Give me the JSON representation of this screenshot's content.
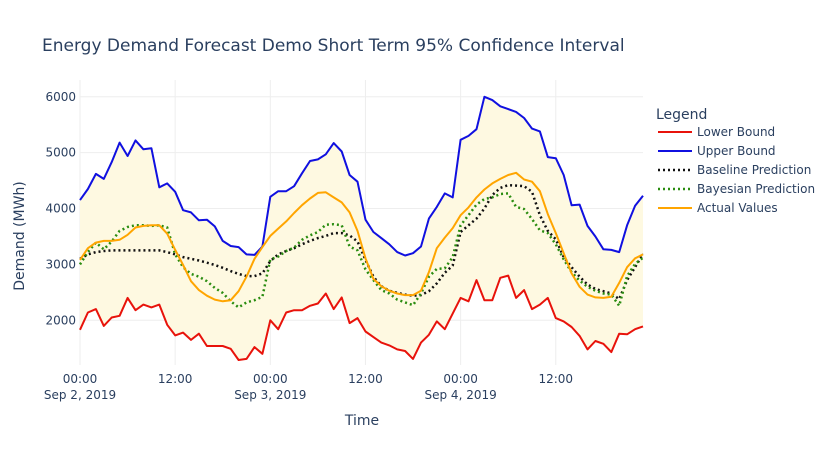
{
  "chart_data": {
    "type": "line",
    "title": "Energy Demand Forecast Demo Short Term 95% Confidence Interval",
    "xlabel": "Time",
    "ylabel": "Demand (MWh)",
    "ylim": [
      1200,
      6300
    ],
    "y_ticks": [
      2000,
      3000,
      4000,
      5000,
      6000
    ],
    "x_ticks": [
      {
        "hour": 0,
        "line1": "00:00",
        "line2": "Sep 2, 2019"
      },
      {
        "hour": 12,
        "line1": "12:00",
        "line2": ""
      },
      {
        "hour": 24,
        "line1": "00:00",
        "line2": "Sep 3, 2019"
      },
      {
        "hour": 36,
        "line1": "12:00",
        "line2": ""
      },
      {
        "hour": 48,
        "line1": "00:00",
        "line2": "Sep 4, 2019"
      },
      {
        "hour": 60,
        "line1": "12:00",
        "line2": ""
      }
    ],
    "x_hours": [
      0,
      1,
      2,
      3,
      4,
      5,
      6,
      7,
      8,
      9,
      10,
      11,
      12,
      13,
      14,
      15,
      16,
      17,
      18,
      19,
      20,
      21,
      22,
      23,
      24,
      25,
      26,
      27,
      28,
      29,
      30,
      31,
      32,
      33,
      34,
      35,
      36,
      37,
      38,
      39,
      40,
      41,
      42,
      43,
      44,
      45,
      46,
      47,
      48,
      49,
      50,
      51,
      52,
      53,
      54,
      55,
      56,
      57,
      58,
      59,
      60,
      61,
      62,
      63,
      64,
      65,
      66,
      67,
      68,
      69,
      70,
      71
    ],
    "legend": {
      "title": "Legend",
      "position": "right"
    },
    "band_fill": "#fef9e1",
    "grid": true,
    "series": [
      {
        "name": "Lower Bound",
        "color": "#e8130b",
        "dash": "solid",
        "values": [
          1830,
          2140,
          2200,
          1900,
          2050,
          2080,
          2400,
          2180,
          2280,
          2230,
          2280,
          1920,
          1730,
          1780,
          1650,
          1760,
          1540,
          1540,
          1540,
          1490,
          1290,
          1310,
          1520,
          1400,
          2000,
          1840,
          2140,
          2180,
          2180,
          2260,
          2300,
          2480,
          2200,
          2410,
          1950,
          2040,
          1800,
          1700,
          1600,
          1550,
          1480,
          1450,
          1310,
          1600,
          1740,
          1980,
          1840,
          2120,
          2400,
          2340,
          2720,
          2360,
          2360,
          2760,
          2800,
          2400,
          2540,
          2200,
          2280,
          2400,
          2040,
          1980,
          1880,
          1720,
          1480,
          1630,
          1580,
          1430,
          1760,
          1750,
          1840,
          1890
        ]
      },
      {
        "name": "Upper Bound",
        "color": "#1010e0",
        "dash": "solid",
        "values": [
          4150,
          4350,
          4620,
          4530,
          4830,
          5180,
          4940,
          5220,
          5060,
          5080,
          4380,
          4450,
          4300,
          3970,
          3930,
          3790,
          3800,
          3680,
          3420,
          3330,
          3310,
          3180,
          3170,
          3320,
          4210,
          4310,
          4310,
          4400,
          4630,
          4850,
          4880,
          4970,
          5170,
          5020,
          4600,
          4480,
          3800,
          3580,
          3470,
          3360,
          3220,
          3160,
          3200,
          3320,
          3820,
          4030,
          4270,
          4200,
          5230,
          5300,
          5420,
          6000,
          5940,
          5830,
          5780,
          5730,
          5620,
          5430,
          5380,
          4920,
          4900,
          4600,
          4060,
          4070,
          3690,
          3500,
          3270,
          3260,
          3220,
          3700,
          4050,
          4230
        ]
      },
      {
        "name": "Baseline Prediction",
        "color": "#111111",
        "dash": "dot",
        "values": [
          3100,
          3180,
          3220,
          3240,
          3250,
          3250,
          3250,
          3250,
          3250,
          3250,
          3250,
          3220,
          3180,
          3130,
          3100,
          3070,
          3030,
          2990,
          2940,
          2880,
          2830,
          2790,
          2790,
          2840,
          3060,
          3180,
          3240,
          3290,
          3360,
          3420,
          3470,
          3510,
          3560,
          3560,
          3520,
          3410,
          3080,
          2780,
          2610,
          2530,
          2490,
          2460,
          2440,
          2450,
          2520,
          2660,
          2850,
          2980,
          3580,
          3700,
          3820,
          4000,
          4240,
          4370,
          4420,
          4410,
          4400,
          4300,
          3880,
          3600,
          3450,
          3130,
          2950,
          2780,
          2640,
          2560,
          2520,
          2480,
          2380,
          2720,
          2950,
          3190
        ]
      },
      {
        "name": "Bayesian Prediction",
        "color": "#2a8c10",
        "dash": "dot",
        "values": [
          3000,
          3220,
          3390,
          3270,
          3410,
          3600,
          3670,
          3700,
          3700,
          3690,
          3700,
          3660,
          3180,
          2950,
          2830,
          2780,
          2700,
          2580,
          2490,
          2340,
          2230,
          2320,
          2360,
          2420,
          3090,
          3140,
          3240,
          3300,
          3440,
          3520,
          3580,
          3710,
          3720,
          3700,
          3320,
          3250,
          2910,
          2720,
          2540,
          2480,
          2370,
          2320,
          2270,
          2480,
          2780,
          2920,
          2930,
          3130,
          3700,
          3880,
          4070,
          4170,
          4200,
          4260,
          4270,
          4030,
          3990,
          3810,
          3610,
          3560,
          3360,
          3090,
          2860,
          2710,
          2600,
          2530,
          2480,
          2460,
          2260,
          2790,
          3010,
          3120
        ]
      },
      {
        "name": "Actual Values",
        "color": "#ffa500",
        "dash": "solid",
        "values": [
          3080,
          3290,
          3390,
          3420,
          3420,
          3440,
          3530,
          3660,
          3690,
          3700,
          3700,
          3550,
          3260,
          2990,
          2700,
          2540,
          2440,
          2370,
          2340,
          2360,
          2520,
          2780,
          3100,
          3310,
          3510,
          3640,
          3770,
          3920,
          4060,
          4180,
          4280,
          4290,
          4200,
          4110,
          3930,
          3600,
          3110,
          2740,
          2610,
          2530,
          2480,
          2450,
          2450,
          2530,
          2860,
          3290,
          3480,
          3650,
          3880,
          4020,
          4200,
          4340,
          4450,
          4530,
          4600,
          4640,
          4520,
          4480,
          4310,
          3900,
          3560,
          3200,
          2840,
          2600,
          2460,
          2410,
          2400,
          2420,
          2670,
          2950,
          3110,
          3180
        ]
      }
    ]
  }
}
